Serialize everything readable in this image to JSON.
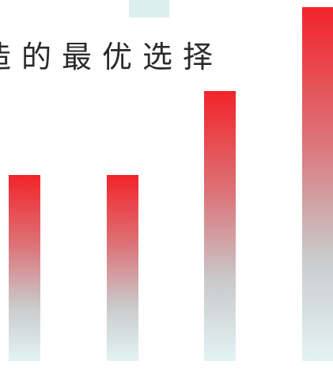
{
  "headline": {
    "text": "造的最优选择",
    "color": "#2a2a2a"
  },
  "bars": [
    {
      "id": "bar-1",
      "relative_height": 0.526
    },
    {
      "id": "bar-2",
      "relative_height": 0.526
    },
    {
      "id": "bar-3",
      "relative_height": 0.763
    },
    {
      "id": "bar-4",
      "relative_height": 1.0
    }
  ],
  "colors": {
    "background": "#ffffff",
    "bar_top": "#f2242a",
    "bar_mid": "#c9c9ca",
    "bar_bottom": "#e3f3f3",
    "top_tab": "#dcefef"
  }
}
